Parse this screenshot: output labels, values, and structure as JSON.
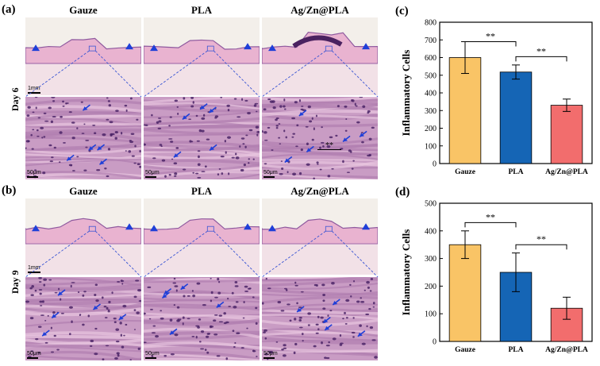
{
  "figure": {
    "panel_labels": {
      "a": "(a)",
      "b": "(b)",
      "c": "(c)",
      "d": "(d)"
    },
    "groups": [
      "Gauze",
      "PLA",
      "Ag/Zn@PLA"
    ],
    "day_labels": {
      "day6": "Day 6",
      "day9": "Day 9"
    },
    "scale_labels": {
      "low_mag": "1mm",
      "high_mag": "50μm"
    },
    "inset_annotation": "**",
    "colors": {
      "tissue_pink": "#e9b3d0",
      "tissue_purple": "#8f5a9f",
      "background": "#f3efea",
      "arrow_blue": "#1f3fd8",
      "dashed_line": "#3a55d4"
    }
  },
  "chart_data": [
    {
      "type": "bar",
      "panel": "(c)",
      "categories": [
        "Gauze",
        "PLA",
        "Ag/Zn@PLA"
      ],
      "values": [
        600,
        518,
        330
      ],
      "errors": [
        90,
        40,
        35
      ],
      "colors": [
        "#f9c466",
        "#1565b5",
        "#f26d6d"
      ],
      "ylabel": "Inflammatory Cells",
      "ylim": [
        0,
        800
      ],
      "yticks": [
        0,
        100,
        200,
        300,
        400,
        500,
        600,
        700,
        800
      ],
      "significance": [
        {
          "from": 0,
          "to": 1,
          "y": 690,
          "label": "**"
        },
        {
          "from": 1,
          "to": 2,
          "y": 605,
          "label": "**"
        }
      ],
      "grid": false
    },
    {
      "type": "bar",
      "panel": "(d)",
      "categories": [
        "Gauze",
        "PLA",
        "Ag/Zn@PLA"
      ],
      "values": [
        350,
        250,
        120
      ],
      "errors": [
        50,
        70,
        40
      ],
      "colors": [
        "#f9c466",
        "#1565b5",
        "#f26d6d"
      ],
      "ylabel": "Inflammatory Cells",
      "ylim": [
        0,
        500
      ],
      "yticks": [
        0,
        100,
        200,
        300,
        400,
        500
      ],
      "significance": [
        {
          "from": 0,
          "to": 1,
          "y": 430,
          "label": "**"
        },
        {
          "from": 1,
          "to": 2,
          "y": 350,
          "label": "**"
        }
      ],
      "grid": false
    }
  ]
}
